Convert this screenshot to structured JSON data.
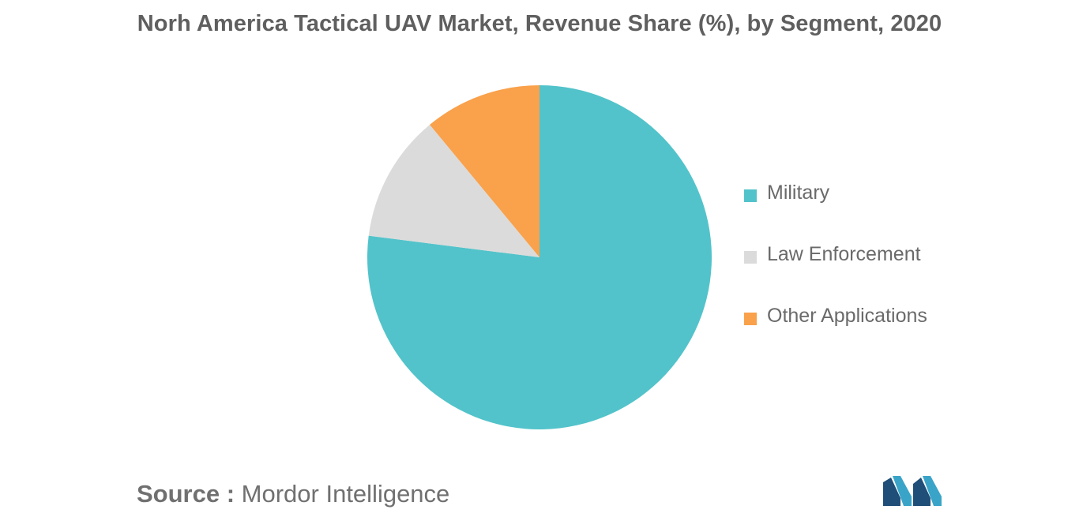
{
  "title": "Norh America Tactical UAV Market, Revenue Share (%), by Segment, 2020",
  "source": {
    "label": "Source :",
    "text": "Mordor Intelligence"
  },
  "colors": {
    "military": "#52c3ca",
    "law_enforcement": "#dbdbdb",
    "other_applications": "#f9a14b"
  },
  "logo_icon": "mordor-intelligence-logo-icon",
  "chart_data": {
    "type": "pie",
    "title": "Norh America Tactical UAV Market, Revenue Share (%), by Segment, 2020",
    "categories": [
      "Military",
      "Law Enforcement",
      "Other Applications"
    ],
    "values": [
      77,
      12,
      11
    ],
    "colors": [
      "#52c3ca",
      "#dbdbdb",
      "#f9a14b"
    ],
    "start_angle_deg": 0,
    "direction": "clockwise",
    "legend_position": "right",
    "data_labels": false
  }
}
